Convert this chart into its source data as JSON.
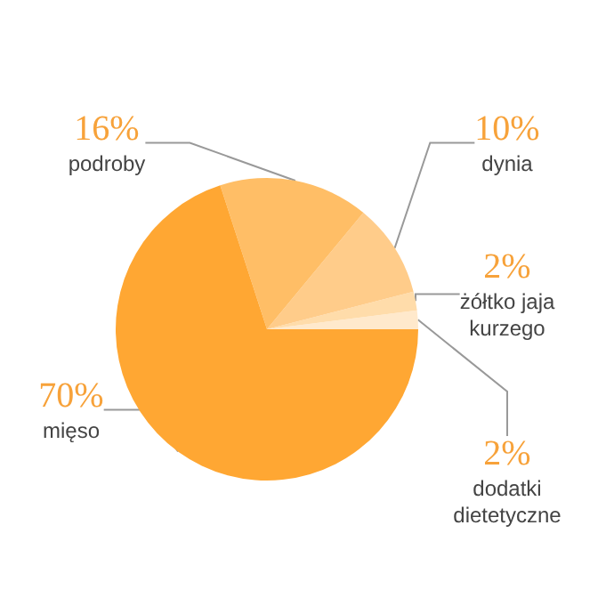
{
  "chart_data": {
    "type": "pie",
    "categories": [
      "dodatki dietetyczne",
      "żółtko jaja kurzego",
      "dynia",
      "podroby",
      "mięso"
    ],
    "values": [
      2,
      2,
      10,
      16,
      70
    ],
    "value_labels": [
      "2%",
      "2%",
      "10%",
      "16%",
      "70%"
    ],
    "colors": [
      "#ffe9cc",
      "#ffdcaa",
      "#ffcc8a",
      "#ffbe66",
      "#ffa733"
    ],
    "legend": false
  }
}
